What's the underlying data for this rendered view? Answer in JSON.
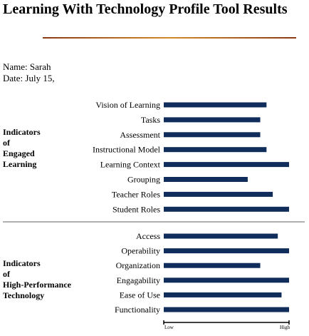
{
  "title": "Learning With Technology Profile Tool Results",
  "name_line": "Name: Sarah",
  "date_line": "Date: July 15,",
  "colors": {
    "bar": "#0f2c5a",
    "rule": "#c8772a",
    "divider": "#b0b0b0"
  },
  "chart_data": [
    {
      "type": "bar",
      "orientation": "horizontal",
      "group_label": [
        "Indicators",
        "of",
        "Engaged",
        "Learning"
      ],
      "categories": [
        "Vision of Learning",
        "Tasks",
        "Assessment",
        "Instructional Model",
        "Learning Context",
        "Grouping",
        "Teacher Roles",
        "Student Roles"
      ],
      "values": [
        0.82,
        0.77,
        0.77,
        0.82,
        1.0,
        0.67,
        0.87,
        1.0
      ],
      "xlim": [
        0,
        1
      ]
    },
    {
      "type": "bar",
      "orientation": "horizontal",
      "group_label": [
        "Indicators",
        "of",
        "High-Performance",
        "Technology"
      ],
      "categories": [
        "Access",
        "Operability",
        "Organization",
        "Engagability",
        "Ease of Use",
        "Functionality"
      ],
      "values": [
        0.91,
        1.0,
        0.77,
        1.0,
        0.94,
        1.0
      ],
      "xlim": [
        0,
        1
      ],
      "axis_labels": {
        "low": "Low",
        "high": "High"
      }
    }
  ]
}
